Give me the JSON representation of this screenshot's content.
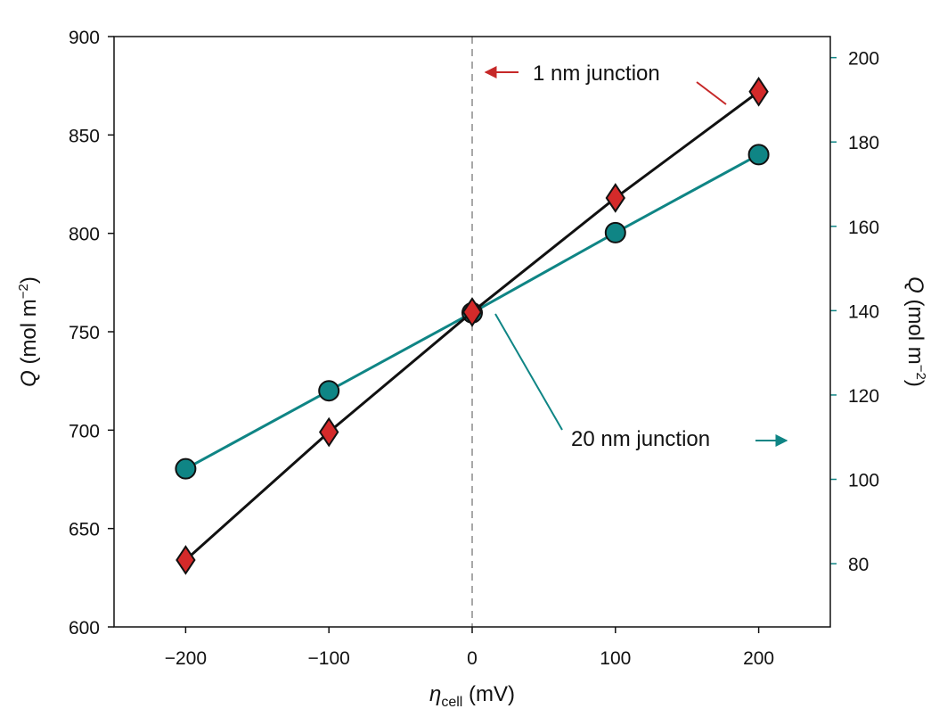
{
  "chart_data": {
    "type": "line",
    "xlabel_symbol": "η",
    "xlabel_subscript": "cell",
    "xlabel_unit": " (mV)",
    "ylabel_left_symbol": "Q",
    "ylabel_left_unit": " (mol m",
    "ylabel_left_exp": "−2",
    "ylabel_left_close": ")",
    "ylabel_right_symbol": "Q",
    "ylabel_right_unit": " (mol m",
    "ylabel_right_exp": "−2",
    "ylabel_right_close": ")",
    "xlim": [
      -250,
      250
    ],
    "ylim_left": [
      600,
      900
    ],
    "ylim_right": [
      65,
      205
    ],
    "x_ticks": [
      -200,
      -100,
      0,
      100,
      200
    ],
    "x_tick_labels": [
      "−200",
      "−100",
      "0",
      "100",
      "200"
    ],
    "y_left_ticks": [
      600,
      650,
      700,
      750,
      800,
      850,
      900
    ],
    "y_left_tick_labels": [
      "600",
      "650",
      "700",
      "750",
      "800",
      "850",
      "900"
    ],
    "y_right_ticks": [
      80,
      100,
      120,
      140,
      160,
      180,
      200
    ],
    "y_right_tick_labels": [
      "80",
      "100",
      "120",
      "140",
      "160",
      "180",
      "200"
    ],
    "vline_x": 0,
    "series": [
      {
        "name": "1 nm junction",
        "axis": "left",
        "x": [
          -200,
          -100,
          0,
          100,
          200
        ],
        "y": [
          634,
          699,
          760,
          818,
          872
        ],
        "line_color": "#111111",
        "marker": "diamond",
        "marker_color": "#d42a2a",
        "arrow_color": "#c62828"
      },
      {
        "name": "20 nm junction",
        "axis": "right",
        "x": [
          -200,
          -100,
          0,
          100,
          200
        ],
        "y": [
          102.5,
          121,
          139.5,
          158.5,
          177
        ],
        "line_color": "#0f8585",
        "marker": "circle",
        "marker_color": "#0f8585",
        "arrow_color": "#0f8585"
      }
    ],
    "annotations": {
      "one_nm": "1 nm junction",
      "twenty_nm": "20 nm junction"
    }
  }
}
